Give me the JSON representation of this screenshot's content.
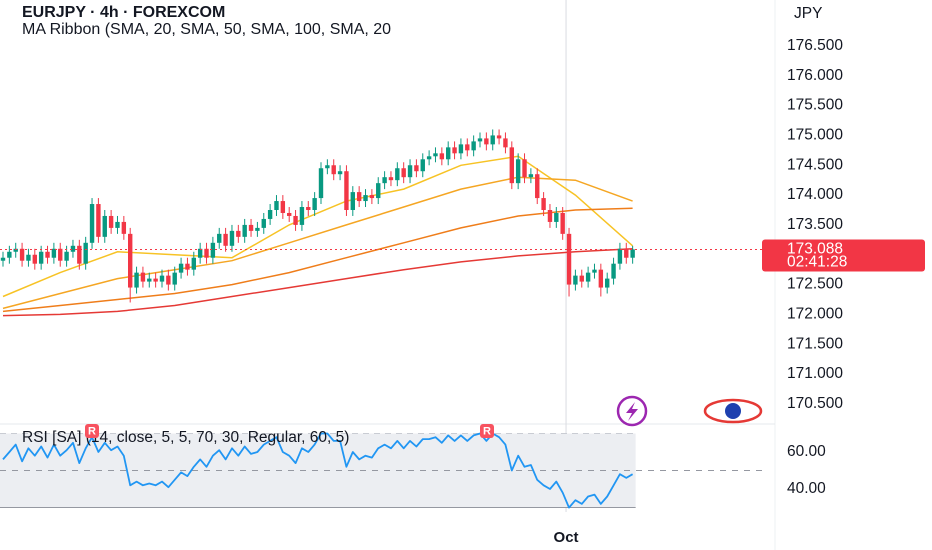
{
  "chart_data": {
    "type": "candlestick",
    "title": "EURJPY · 4h · FOREXCOM",
    "subtitle": "MA Ribbon (SMA, 20, SMA, 50, SMA, 100, SMA, 20",
    "currency": "JPY",
    "x": [
      null,
      null,
      null,
      null,
      null,
      null,
      null,
      null,
      null,
      null,
      null,
      null,
      null,
      null,
      null,
      null,
      null,
      null,
      null,
      null,
      null,
      null,
      null,
      null,
      null,
      null,
      null,
      null,
      null,
      null,
      null,
      null,
      null,
      null,
      null,
      null,
      null,
      null,
      null,
      null,
      null,
      null,
      null,
      null,
      null,
      null,
      null,
      null,
      null,
      null,
      null,
      null,
      null,
      null,
      null,
      null,
      null,
      null,
      null,
      null,
      null,
      null,
      null,
      null,
      null,
      null,
      null,
      null,
      null,
      null,
      null,
      null,
      null,
      null,
      null,
      null,
      null,
      null,
      null,
      null,
      null,
      null,
      null,
      null,
      null,
      null,
      null,
      null,
      null,
      "Oct",
      null,
      null,
      null,
      null,
      null,
      null,
      null,
      null,
      null,
      null
    ],
    "open": [
      172.9,
      172.95,
      173.05,
      173.1,
      172.9,
      173.0,
      172.85,
      173.05,
      172.95,
      173.1,
      172.9,
      173.05,
      173.15,
      172.85,
      173.2,
      173.85,
      173.3,
      173.65,
      173.45,
      173.55,
      173.35,
      172.45,
      172.7,
      172.55,
      172.6,
      172.55,
      172.65,
      172.5,
      172.7,
      172.85,
      172.75,
      172.95,
      173.1,
      172.95,
      173.2,
      173.35,
      173.15,
      173.4,
      173.3,
      173.5,
      173.4,
      173.45,
      173.6,
      173.75,
      173.9,
      173.7,
      173.65,
      173.5,
      173.8,
      173.75,
      173.95,
      174.45,
      174.5,
      174.35,
      174.4,
      173.75,
      174.05,
      173.9,
      174.0,
      173.95,
      174.2,
      174.3,
      174.25,
      174.45,
      174.3,
      174.5,
      174.4,
      174.6,
      174.65,
      174.7,
      174.6,
      174.8,
      174.7,
      174.85,
      174.75,
      174.9,
      174.95,
      174.85,
      175.0,
      174.95,
      174.8,
      174.2,
      174.6,
      174.3,
      174.35,
      173.95,
      173.75,
      173.55,
      173.7,
      173.35,
      172.5,
      172.65,
      172.55,
      172.7,
      172.75,
      172.45,
      172.6,
      172.85,
      173.1,
      172.95
    ],
    "high": [
      173.05,
      173.15,
      173.2,
      173.2,
      173.1,
      173.1,
      173.15,
      173.15,
      173.2,
      173.2,
      173.15,
      173.25,
      173.25,
      173.3,
      173.95,
      173.95,
      173.75,
      173.75,
      173.65,
      173.65,
      173.45,
      172.8,
      172.8,
      172.7,
      172.7,
      172.75,
      172.75,
      172.8,
      172.95,
      172.95,
      173.05,
      173.2,
      173.2,
      173.3,
      173.45,
      173.45,
      173.5,
      173.5,
      173.6,
      173.6,
      173.55,
      173.7,
      173.85,
      174.0,
      174.0,
      173.8,
      173.75,
      173.9,
      173.9,
      174.05,
      174.55,
      174.6,
      174.6,
      174.5,
      174.5,
      174.15,
      174.15,
      174.1,
      174.1,
      174.3,
      174.4,
      174.4,
      174.55,
      174.55,
      174.6,
      174.6,
      174.7,
      174.75,
      174.8,
      174.8,
      174.9,
      174.9,
      174.95,
      174.95,
      175.0,
      175.05,
      175.05,
      175.1,
      175.1,
      175.05,
      174.9,
      174.7,
      174.7,
      174.45,
      174.45,
      174.05,
      173.85,
      173.8,
      173.8,
      173.45,
      172.75,
      172.75,
      172.8,
      172.85,
      172.85,
      172.7,
      172.95,
      173.2,
      173.2,
      173.15
    ],
    "low": [
      172.8,
      172.85,
      172.95,
      172.8,
      172.8,
      172.75,
      172.75,
      172.85,
      172.85,
      172.8,
      172.8,
      172.95,
      172.75,
      172.75,
      173.1,
      173.2,
      173.2,
      173.35,
      173.35,
      173.25,
      172.2,
      172.35,
      172.45,
      172.45,
      172.45,
      172.45,
      172.4,
      172.4,
      172.6,
      172.65,
      172.65,
      172.85,
      172.85,
      172.85,
      173.1,
      173.05,
      173.05,
      173.2,
      173.2,
      173.3,
      173.3,
      173.35,
      173.5,
      173.65,
      173.6,
      173.55,
      173.4,
      173.4,
      173.65,
      173.65,
      173.85,
      174.35,
      174.25,
      174.25,
      173.65,
      173.65,
      173.8,
      173.8,
      173.85,
      173.85,
      174.1,
      174.15,
      174.15,
      174.2,
      174.2,
      174.3,
      174.3,
      174.5,
      174.55,
      174.5,
      174.5,
      174.6,
      174.6,
      174.65,
      174.65,
      174.8,
      174.75,
      174.75,
      174.85,
      174.7,
      174.1,
      174.1,
      174.2,
      174.2,
      173.85,
      173.65,
      173.45,
      173.45,
      173.25,
      172.3,
      172.4,
      172.45,
      172.45,
      172.6,
      172.3,
      172.35,
      172.5,
      172.75,
      172.85,
      172.85
    ],
    "close": [
      172.95,
      173.05,
      173.1,
      172.9,
      173.0,
      172.85,
      173.05,
      172.95,
      173.1,
      172.9,
      173.05,
      173.15,
      172.85,
      173.2,
      173.85,
      173.3,
      173.65,
      173.45,
      173.55,
      173.35,
      172.45,
      172.7,
      172.55,
      172.6,
      172.55,
      172.65,
      172.5,
      172.7,
      172.85,
      172.75,
      172.95,
      173.1,
      172.95,
      173.2,
      173.35,
      173.15,
      173.4,
      173.3,
      173.5,
      173.4,
      173.45,
      173.6,
      173.75,
      173.9,
      173.7,
      173.65,
      173.5,
      173.8,
      173.75,
      173.95,
      174.45,
      174.5,
      174.35,
      174.4,
      173.75,
      174.05,
      173.9,
      174.0,
      173.95,
      174.2,
      174.3,
      174.25,
      174.45,
      174.3,
      174.5,
      174.4,
      174.6,
      174.65,
      174.7,
      174.6,
      174.8,
      174.7,
      174.85,
      174.75,
      174.9,
      174.95,
      174.85,
      175.0,
      174.95,
      174.8,
      174.2,
      174.6,
      174.3,
      174.35,
      173.95,
      173.75,
      173.55,
      173.7,
      173.35,
      172.5,
      172.65,
      172.55,
      172.7,
      172.75,
      172.45,
      172.6,
      172.85,
      173.1,
      172.95,
      173.09
    ],
    "up_color": "#089981",
    "down_color": "#f23645",
    "ylim": [
      170.23,
      177.27
    ],
    "yticks": [
      {
        "value": 170.5,
        "label": "170.500"
      },
      {
        "value": 171,
        "label": "171.000"
      },
      {
        "value": 171.5,
        "label": "171.500"
      },
      {
        "value": 172,
        "label": "172.000"
      },
      {
        "value": 172.5,
        "label": "172.500"
      },
      {
        "value": 173,
        "label": "173.000"
      },
      {
        "value": 173.5,
        "label": "173.500"
      },
      {
        "value": 174,
        "label": "174.000"
      },
      {
        "value": 174.5,
        "label": "174.500"
      },
      {
        "value": 175,
        "label": "175.000"
      },
      {
        "value": 175.5,
        "label": "175.500"
      },
      {
        "value": 176,
        "label": "176.000"
      },
      {
        "value": 176.5,
        "label": "176.500"
      }
    ],
    "last_price": 173.088,
    "last_price_color": "#f23645",
    "countdown": "02:41:28",
    "ma_x": [
      0,
      9,
      18,
      27,
      36,
      45,
      54,
      63,
      72,
      81,
      90,
      99
    ],
    "moving_averages": [
      {
        "color": "#f7c325",
        "values": [
          172.3,
          172.7,
          173.05,
          173.0,
          172.95,
          173.5,
          173.9,
          174.1,
          174.5,
          174.65,
          174.0,
          173.15
        ]
      },
      {
        "color": "#f5a623",
        "values": [
          172.1,
          172.35,
          172.6,
          172.75,
          172.9,
          173.2,
          173.5,
          173.8,
          174.1,
          174.3,
          174.25,
          173.9
        ]
      },
      {
        "color": "#ef7d1a",
        "values": [
          172.05,
          172.15,
          172.25,
          172.35,
          172.5,
          172.7,
          172.95,
          173.2,
          173.45,
          173.65,
          173.75,
          173.78
        ]
      },
      {
        "color": "#e53935",
        "values": [
          171.98,
          172.0,
          172.05,
          172.15,
          172.3,
          172.45,
          172.6,
          172.75,
          172.88,
          172.98,
          173.05,
          173.1
        ]
      }
    ],
    "rsi": {
      "title": "RSI [SA] (14, close, 5, 5, 70, 30, Regular, 60, 5)",
      "color": "#2196f3",
      "values": [
        56,
        60,
        64,
        55,
        62,
        58,
        63,
        57,
        64,
        58,
        61,
        65,
        54,
        62,
        68,
        60,
        65,
        61,
        63,
        58,
        42,
        44,
        42,
        43,
        42,
        44,
        41,
        45,
        49,
        47,
        52,
        56,
        52,
        58,
        61,
        56,
        62,
        58,
        63,
        59,
        60,
        64,
        66,
        68,
        60,
        58,
        54,
        62,
        60,
        64,
        70,
        70,
        66,
        66,
        52,
        60,
        56,
        58,
        57,
        62,
        64,
        62,
        66,
        62,
        66,
        63,
        67,
        67,
        68,
        65,
        69,
        66,
        69,
        66,
        69,
        70,
        66,
        70,
        68,
        64,
        50,
        58,
        52,
        53,
        45,
        42,
        40,
        44,
        38,
        30,
        34,
        32,
        36,
        37,
        32,
        36,
        42,
        48,
        46,
        48
      ],
      "ylim": [
        27.6,
        71.9
      ],
      "yticks": [
        {
          "value": 60,
          "label": "60.00"
        },
        {
          "value": 40,
          "label": "40.00"
        }
      ],
      "band": [
        30,
        70
      ],
      "midline": 50,
      "badges": [
        "R",
        "R"
      ]
    }
  }
}
